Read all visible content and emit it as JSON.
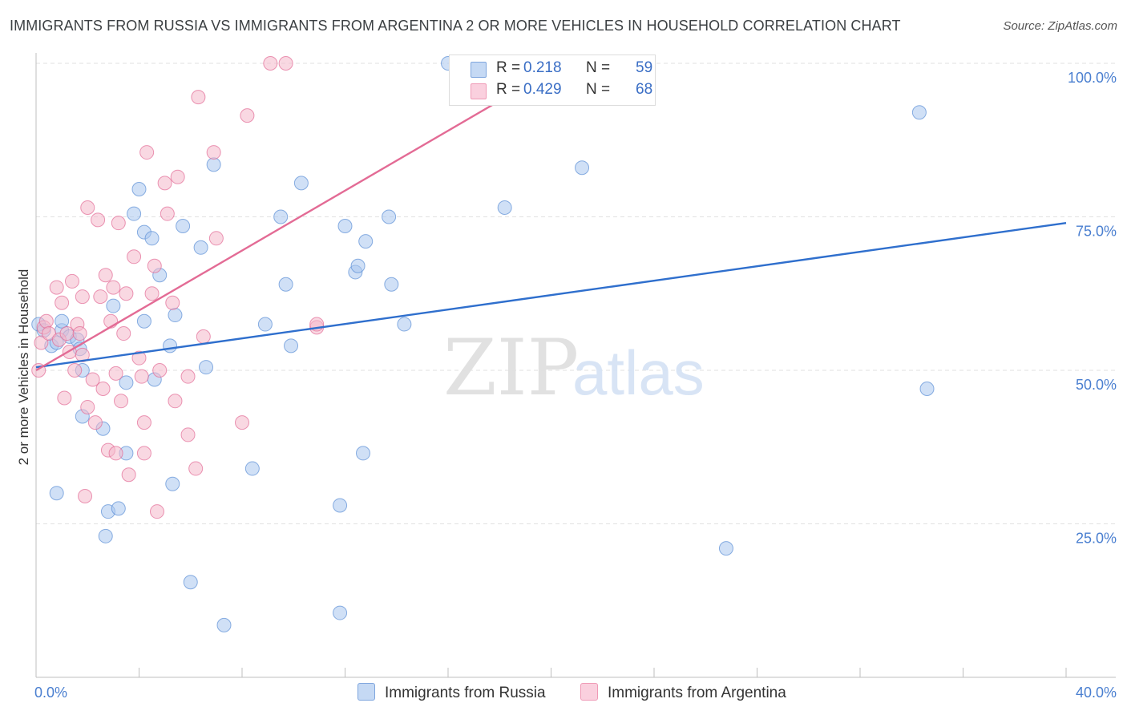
{
  "title": "IMMIGRANTS FROM RUSSIA VS IMMIGRANTS FROM ARGENTINA 2 OR MORE VEHICLES IN HOUSEHOLD CORRELATION CHART",
  "source": "Source: ZipAtlas.com",
  "watermark": {
    "zip": "ZIP",
    "atlas": "atlas"
  },
  "legend": {
    "russia": {
      "r_label": "R =",
      "r_value": "0.218",
      "n_label": "N =",
      "n_value": "59",
      "color": "#a9c6ef"
    },
    "argentina": {
      "r_label": "R =",
      "r_value": "0.429",
      "n_label": "N =",
      "n_value": "68",
      "color": "#f4b8cb"
    }
  },
  "bottom_legend": {
    "russia": "Immigrants from Russia",
    "argentina": "Immigrants from Argentina"
  },
  "chart_data": {
    "type": "scatter",
    "title": "IMMIGRANTS FROM RUSSIA VS IMMIGRANTS FROM ARGENTINA 2 OR MORE VEHICLES IN HOUSEHOLD CORRELATION CHART",
    "xlabel": "",
    "ylabel": "2 or more Vehicles in Household",
    "xlim": [
      0,
      40
    ],
    "ylim": [
      0,
      100
    ],
    "x_tick_labels": [
      "0.0%",
      "40.0%"
    ],
    "y_ticks": [
      25,
      50,
      75,
      100
    ],
    "y_tick_labels": [
      "25.0%",
      "50.0%",
      "75.0%",
      "100.0%"
    ],
    "grid": true,
    "series": [
      {
        "name": "Immigrants from Russia",
        "color": "#5b8fd6",
        "fill": "#a9c6ef",
        "trend": {
          "x": [
            0,
            40
          ],
          "y": [
            50.5,
            74
          ]
        },
        "points": [
          [
            0.1,
            57.5
          ],
          [
            0.3,
            56.5
          ],
          [
            0.6,
            54
          ],
          [
            0.8,
            54.5
          ],
          [
            1.0,
            56.5
          ],
          [
            1.3,
            55.5
          ],
          [
            1.6,
            55
          ],
          [
            1.7,
            53.5
          ],
          [
            1.8,
            50
          ],
          [
            1.0,
            58
          ],
          [
            0.8,
            30
          ],
          [
            1.8,
            42.5
          ],
          [
            2.6,
            40.5
          ],
          [
            2.8,
            27
          ],
          [
            3.2,
            27.5
          ],
          [
            2.7,
            23
          ],
          [
            3.5,
            36.5
          ],
          [
            3.5,
            48
          ],
          [
            3.0,
            60.5
          ],
          [
            4.2,
            58
          ],
          [
            4.6,
            48.5
          ],
          [
            4.8,
            65.5
          ],
          [
            5.2,
            54
          ],
          [
            5.3,
            31.5
          ],
          [
            5.4,
            59
          ],
          [
            5.7,
            73.5
          ],
          [
            6.0,
            15.5
          ],
          [
            6.4,
            70
          ],
          [
            6.6,
            50.5
          ],
          [
            6.9,
            83.5
          ],
          [
            7.3,
            8.5
          ],
          [
            3.8,
            75.5
          ],
          [
            4.2,
            72.5
          ],
          [
            4.5,
            71.5
          ],
          [
            4.0,
            79.5
          ],
          [
            8.4,
            34
          ],
          [
            8.9,
            57.5
          ],
          [
            9.5,
            75
          ],
          [
            9.7,
            64
          ],
          [
            9.9,
            54
          ],
          [
            10.3,
            80.5
          ],
          [
            11.8,
            28
          ],
          [
            11.8,
            10.5
          ],
          [
            12.0,
            73.5
          ],
          [
            12.4,
            66
          ],
          [
            12.5,
            67
          ],
          [
            12.8,
            71
          ],
          [
            12.7,
            36.5
          ],
          [
            13.7,
            75
          ],
          [
            13.8,
            64
          ],
          [
            14.3,
            57.5
          ],
          [
            16.0,
            100
          ],
          [
            18.2,
            76.5
          ],
          [
            21.2,
            83
          ],
          [
            26.8,
            21
          ],
          [
            34.3,
            92
          ],
          [
            34.6,
            47
          ]
        ]
      },
      {
        "name": "Immigrants from Argentina",
        "color": "#e36b95",
        "fill": "#f4b8cb",
        "trend": {
          "x": [
            0,
            20.5
          ],
          "y": [
            50,
            100
          ]
        },
        "points": [
          [
            0.1,
            50
          ],
          [
            0.2,
            54.5
          ],
          [
            0.3,
            57
          ],
          [
            0.4,
            58
          ],
          [
            0.5,
            56
          ],
          [
            0.8,
            63.5
          ],
          [
            0.9,
            55
          ],
          [
            1.0,
            61
          ],
          [
            1.1,
            45.5
          ],
          [
            1.2,
            56
          ],
          [
            1.3,
            53
          ],
          [
            1.4,
            64.5
          ],
          [
            1.5,
            50
          ],
          [
            1.6,
            57.5
          ],
          [
            1.7,
            56
          ],
          [
            1.8,
            52.5
          ],
          [
            1.8,
            62
          ],
          [
            2.0,
            44
          ],
          [
            2.0,
            76.5
          ],
          [
            2.2,
            48.5
          ],
          [
            2.3,
            41.5
          ],
          [
            2.4,
            74.5
          ],
          [
            2.5,
            62
          ],
          [
            2.6,
            47
          ],
          [
            2.7,
            65.5
          ],
          [
            2.8,
            37
          ],
          [
            2.9,
            58
          ],
          [
            3.0,
            63.5
          ],
          [
            3.1,
            49.5
          ],
          [
            3.1,
            36.5
          ],
          [
            3.2,
            74
          ],
          [
            3.3,
            45
          ],
          [
            3.4,
            56
          ],
          [
            3.5,
            62.5
          ],
          [
            3.6,
            33
          ],
          [
            3.8,
            68.5
          ],
          [
            4.0,
            52
          ],
          [
            4.1,
            49
          ],
          [
            4.2,
            41.5
          ],
          [
            4.2,
            36.5
          ],
          [
            4.3,
            85.5
          ],
          [
            4.5,
            62.5
          ],
          [
            4.6,
            67
          ],
          [
            4.7,
            27
          ],
          [
            4.8,
            50
          ],
          [
            5.0,
            80.5
          ],
          [
            5.1,
            75.5
          ],
          [
            5.3,
            61
          ],
          [
            5.4,
            45
          ],
          [
            5.5,
            81.5
          ],
          [
            5.9,
            49
          ],
          [
            5.9,
            39.5
          ],
          [
            6.2,
            34
          ],
          [
            6.3,
            94.5
          ],
          [
            6.5,
            55.5
          ],
          [
            6.9,
            85.5
          ],
          [
            7.0,
            71.5
          ],
          [
            8.0,
            41.5
          ],
          [
            8.2,
            91.5
          ],
          [
            9.1,
            100
          ],
          [
            9.7,
            100
          ],
          [
            10.9,
            57
          ],
          [
            10.9,
            57.5
          ],
          [
            1.9,
            29.5
          ]
        ]
      }
    ]
  }
}
